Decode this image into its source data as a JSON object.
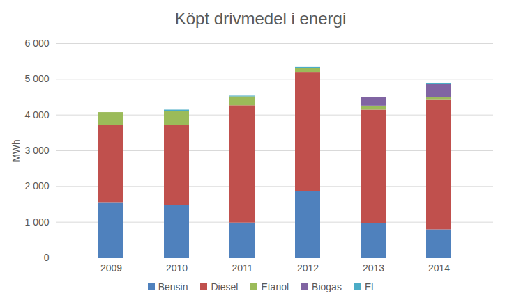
{
  "chart_data": {
    "type": "bar",
    "stacked": true,
    "title": "Köpt drivmedel i energi",
    "ylabel": "MWh",
    "categories": [
      "2009",
      "2010",
      "2011",
      "2012",
      "2013",
      "2014"
    ],
    "series": [
      {
        "name": "Bensin",
        "color": "#4f81bd",
        "values": [
          1550,
          1470,
          980,
          1870,
          960,
          790
        ]
      },
      {
        "name": "Diesel",
        "color": "#c0504d",
        "values": [
          2170,
          2250,
          3280,
          3310,
          3180,
          3640
        ]
      },
      {
        "name": "Etanol",
        "color": "#9bbb59",
        "values": [
          350,
          390,
          250,
          120,
          110,
          50
        ]
      },
      {
        "name": "Biogas",
        "color": "#8064a2",
        "values": [
          0,
          0,
          0,
          0,
          240,
          390
        ]
      },
      {
        "name": "El",
        "color": "#4bacc6",
        "values": [
          0,
          30,
          20,
          40,
          10,
          20
        ]
      }
    ],
    "ylim": [
      0,
      6000
    ],
    "yticks": [
      0,
      {
        "value": 1000,
        "label": "1 000"
      },
      {
        "value": 2000,
        "label": "2 000"
      },
      {
        "value": 3000,
        "label": "3 000"
      },
      {
        "value": 4000,
        "label": "4 000"
      },
      {
        "value": 5000,
        "label": "5 000"
      },
      {
        "value": 6000,
        "label": "6 000"
      }
    ],
    "grid": true,
    "legend": "bottom"
  }
}
